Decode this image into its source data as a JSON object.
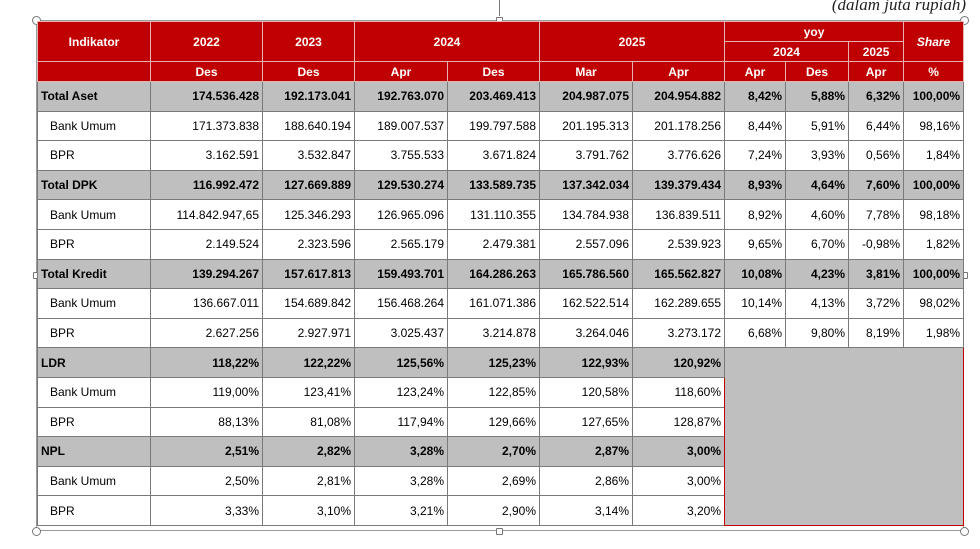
{
  "unit_note": "(dalam juta rupiah)",
  "header": {
    "indikator": "Indikator",
    "years": [
      "2022",
      "2023",
      "2024",
      "2025"
    ],
    "yoy": "yoy",
    "yoy_years": [
      "2024",
      "2025"
    ],
    "share": "Share",
    "months": [
      "Des",
      "Des",
      "Apr",
      "Des",
      "Mar",
      "Apr",
      "Apr",
      "Des",
      "Apr",
      "%"
    ]
  },
  "rows": [
    {
      "label": "Total Aset",
      "type": "main",
      "values": [
        "174.536.428",
        "192.173.041",
        "192.763.070",
        "203.469.413",
        "204.987.075",
        "204.954.882",
        "8,42%",
        "5,88%",
        "6,32%",
        "100,00%"
      ]
    },
    {
      "label": "Bank Umum",
      "type": "sub",
      "values": [
        "171.373.838",
        "188.640.194",
        "189.007.537",
        "199.797.588",
        "201.195.313",
        "201.178.256",
        "8,44%",
        "5,91%",
        "6,44%",
        "98,16%"
      ]
    },
    {
      "label": "BPR",
      "type": "sub",
      "values": [
        "3.162.591",
        "3.532.847",
        "3.755.533",
        "3.671.824",
        "3.791.762",
        "3.776.626",
        "7,24%",
        "3,93%",
        "0,56%",
        "1,84%"
      ]
    },
    {
      "label": "Total DPK",
      "type": "main",
      "values": [
        "116.992.472",
        "127.669.889",
        "129.530.274",
        "133.589.735",
        "137.342.034",
        "139.379.434",
        "8,93%",
        "4,64%",
        "7,60%",
        "100,00%"
      ]
    },
    {
      "label": "Bank Umum",
      "type": "sub",
      "values": [
        "114.842.947,65",
        "125.346.293",
        "126.965.096",
        "131.110.355",
        "134.784.938",
        "136.839.511",
        "8,92%",
        "4,60%",
        "7,78%",
        "98,18%"
      ]
    },
    {
      "label": "BPR",
      "type": "sub",
      "values": [
        "2.149.524",
        "2.323.596",
        "2.565.179",
        "2.479.381",
        "2.557.096",
        "2.539.923",
        "9,65%",
        "6,70%",
        "-0,98%",
        "1,82%"
      ]
    },
    {
      "label": "Total Kredit",
      "type": "main",
      "values": [
        "139.294.267",
        "157.617.813",
        "159.493.701",
        "164.286.263",
        "165.786.560",
        "165.562.827",
        "10,08%",
        "4,23%",
        "3,81%",
        "100,00%"
      ]
    },
    {
      "label": "Bank Umum",
      "type": "sub",
      "values": [
        "136.667.011",
        "154.689.842",
        "156.468.264",
        "161.071.386",
        "162.522.514",
        "162.289.655",
        "10,14%",
        "4,13%",
        "3,72%",
        "98,02%"
      ]
    },
    {
      "label": "BPR",
      "type": "sub",
      "values": [
        "2.627.256",
        "2.927.971",
        "3.025.437",
        "3.214.878",
        "3.264.046",
        "3.273.172",
        "6,68%",
        "9,80%",
        "8,19%",
        "1,98%"
      ]
    },
    {
      "label": "LDR",
      "type": "main",
      "values": [
        "118,22%",
        "122,22%",
        "125,56%",
        "125,23%",
        "122,93%",
        "120,92%"
      ]
    },
    {
      "label": "Bank Umum",
      "type": "sub",
      "values": [
        "119,00%",
        "123,41%",
        "123,24%",
        "122,85%",
        "120,58%",
        "118,60%"
      ]
    },
    {
      "label": "BPR",
      "type": "sub",
      "values": [
        "88,13%",
        "81,08%",
        "117,94%",
        "129,66%",
        "127,65%",
        "128,87%"
      ]
    },
    {
      "label": "NPL",
      "type": "main",
      "values": [
        "2,51%",
        "2,82%",
        "3,28%",
        "2,70%",
        "2,87%",
        "3,00%"
      ]
    },
    {
      "label": "Bank Umum",
      "type": "sub",
      "values": [
        "2,50%",
        "2,81%",
        "3,28%",
        "2,69%",
        "2,86%",
        "3,00%"
      ]
    },
    {
      "label": "BPR",
      "type": "sub",
      "values": [
        "3,33%",
        "3,10%",
        "3,21%",
        "2,90%",
        "3,14%",
        "3,20%"
      ]
    }
  ],
  "colors": {
    "header_red": "#c00000",
    "main_row_gray": "#bfbfbf"
  }
}
